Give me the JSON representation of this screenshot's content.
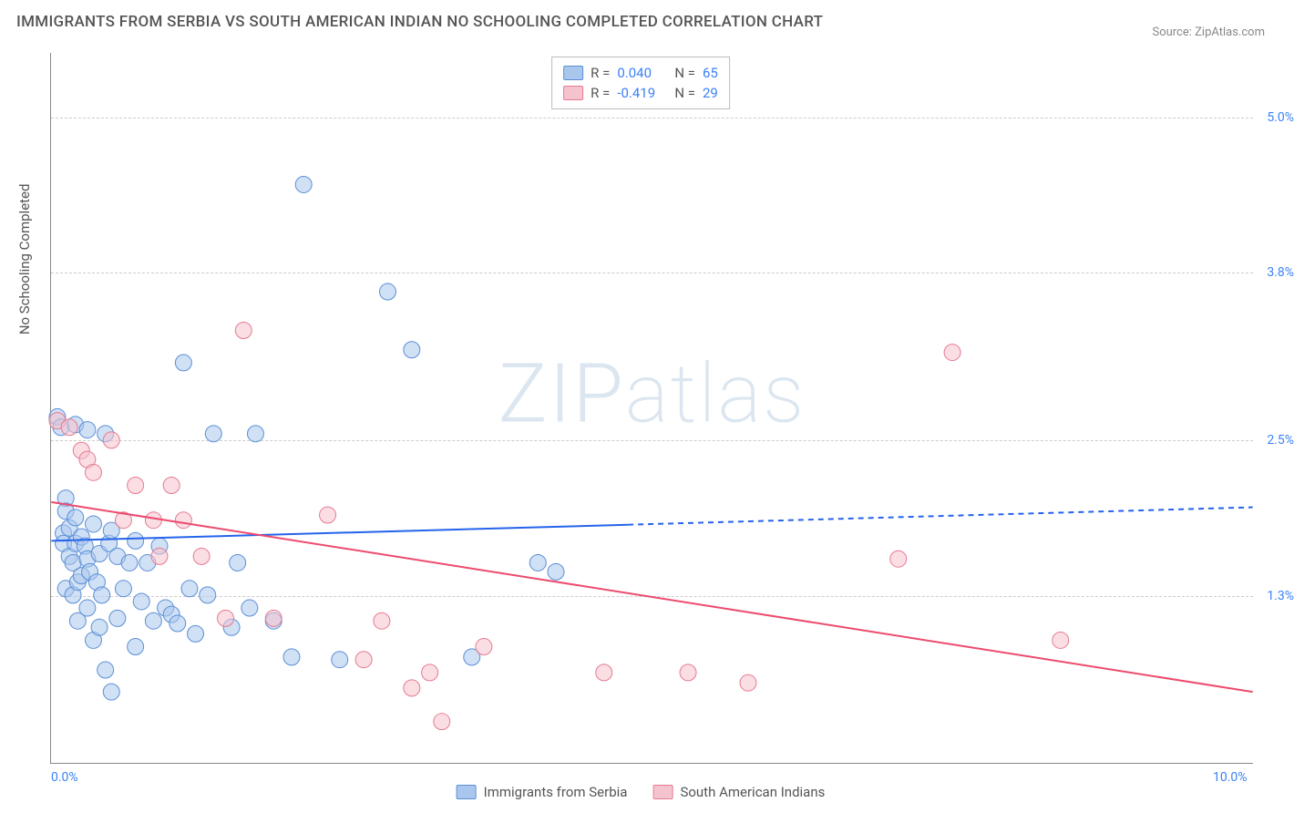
{
  "title": "IMMIGRANTS FROM SERBIA VS SOUTH AMERICAN INDIAN NO SCHOOLING COMPLETED CORRELATION CHART",
  "source": "Source: ZipAtlas.com",
  "watermark_a": "ZIP",
  "watermark_b": "atlas",
  "chart": {
    "type": "scatter-correlation",
    "ylabel": "No Schooling Completed",
    "background_color": "#ffffff",
    "grid_color": "#cccccc",
    "axis_color": "#888888",
    "tick_color": "#3b82f6",
    "xlim": [
      0.0,
      10.0
    ],
    "ylim": [
      0.0,
      5.5
    ],
    "yticks": [
      1.3,
      2.5,
      3.8,
      5.0
    ],
    "ytick_labels": [
      "1.3%",
      "2.5%",
      "3.8%",
      "5.0%"
    ],
    "xticks": [
      0.0,
      10.0
    ],
    "xtick_labels": [
      "0.0%",
      "10.0%"
    ],
    "tick_fontsize": 14,
    "label_fontsize": 15,
    "title_fontsize": 17,
    "marker_radius": 9,
    "marker_opacity": 0.55,
    "line_width": 2,
    "series": [
      {
        "name": "Immigrants from Serbia",
        "color_fill": "#a9c7ec",
        "color_stroke": "#5b8fd6",
        "line_color": "#2563eb",
        "R": "0.040",
        "N": "65",
        "trend": {
          "x1": 0.0,
          "y1": 1.72,
          "x2": 10.0,
          "y2": 1.98,
          "solid_until_x": 4.8
        },
        "points": [
          [
            0.05,
            2.68
          ],
          [
            0.08,
            2.6
          ],
          [
            0.1,
            1.78
          ],
          [
            0.1,
            1.7
          ],
          [
            0.12,
            2.05
          ],
          [
            0.12,
            1.95
          ],
          [
            0.12,
            1.35
          ],
          [
            0.15,
            1.82
          ],
          [
            0.15,
            1.6
          ],
          [
            0.18,
            1.55
          ],
          [
            0.18,
            1.3
          ],
          [
            0.2,
            2.62
          ],
          [
            0.2,
            1.9
          ],
          [
            0.2,
            1.7
          ],
          [
            0.22,
            1.4
          ],
          [
            0.22,
            1.1
          ],
          [
            0.25,
            1.75
          ],
          [
            0.25,
            1.45
          ],
          [
            0.28,
            1.68
          ],
          [
            0.3,
            2.58
          ],
          [
            0.3,
            1.58
          ],
          [
            0.3,
            1.2
          ],
          [
            0.32,
            1.48
          ],
          [
            0.35,
            1.85
          ],
          [
            0.35,
            0.95
          ],
          [
            0.38,
            1.4
          ],
          [
            0.4,
            1.62
          ],
          [
            0.4,
            1.05
          ],
          [
            0.42,
            1.3
          ],
          [
            0.45,
            2.55
          ],
          [
            0.45,
            0.72
          ],
          [
            0.48,
            1.7
          ],
          [
            0.5,
            1.8
          ],
          [
            0.5,
            0.55
          ],
          [
            0.55,
            1.6
          ],
          [
            0.55,
            1.12
          ],
          [
            0.6,
            1.35
          ],
          [
            0.65,
            1.55
          ],
          [
            0.7,
            0.9
          ],
          [
            0.7,
            1.72
          ],
          [
            0.75,
            1.25
          ],
          [
            0.8,
            1.55
          ],
          [
            0.85,
            1.1
          ],
          [
            0.9,
            1.68
          ],
          [
            0.95,
            1.2
          ],
          [
            1.0,
            1.15
          ],
          [
            1.05,
            1.08
          ],
          [
            1.1,
            3.1
          ],
          [
            1.15,
            1.35
          ],
          [
            1.2,
            1.0
          ],
          [
            1.3,
            1.3
          ],
          [
            1.35,
            2.55
          ],
          [
            1.5,
            1.05
          ],
          [
            1.55,
            1.55
          ],
          [
            1.65,
            1.2
          ],
          [
            1.7,
            2.55
          ],
          [
            1.85,
            1.1
          ],
          [
            2.0,
            0.82
          ],
          [
            2.1,
            4.48
          ],
          [
            2.4,
            0.8
          ],
          [
            2.8,
            3.65
          ],
          [
            3.0,
            3.2
          ],
          [
            3.5,
            0.82
          ],
          [
            4.05,
            1.55
          ],
          [
            4.2,
            1.48
          ]
        ]
      },
      {
        "name": "South American Indians",
        "color_fill": "#f5c3cd",
        "color_stroke": "#e67a92",
        "line_color": "#ec4b6e",
        "R": "-0.419",
        "N": "29",
        "trend": {
          "x1": 0.0,
          "y1": 2.02,
          "x2": 10.0,
          "y2": 0.55,
          "solid_until_x": 10.0
        },
        "points": [
          [
            0.05,
            2.65
          ],
          [
            0.15,
            2.6
          ],
          [
            0.25,
            2.42
          ],
          [
            0.3,
            2.35
          ],
          [
            0.35,
            2.25
          ],
          [
            0.5,
            2.5
          ],
          [
            0.6,
            1.88
          ],
          [
            0.7,
            2.15
          ],
          [
            0.85,
            1.88
          ],
          [
            0.9,
            1.6
          ],
          [
            1.0,
            2.15
          ],
          [
            1.1,
            1.88
          ],
          [
            1.25,
            1.6
          ],
          [
            1.45,
            1.12
          ],
          [
            1.6,
            3.35
          ],
          [
            1.85,
            1.12
          ],
          [
            2.3,
            1.92
          ],
          [
            2.6,
            0.8
          ],
          [
            2.75,
            1.1
          ],
          [
            3.0,
            0.58
          ],
          [
            3.15,
            0.7
          ],
          [
            3.25,
            0.32
          ],
          [
            3.6,
            0.9
          ],
          [
            4.6,
            0.7
          ],
          [
            5.3,
            0.7
          ],
          [
            5.8,
            0.62
          ],
          [
            7.05,
            1.58
          ],
          [
            7.5,
            3.18
          ],
          [
            8.4,
            0.95
          ]
        ]
      }
    ]
  },
  "legend_top": {
    "r_label": "R =",
    "n_label": "N =",
    "text_color": "#555555",
    "value_color": "#3b82f6"
  },
  "legend_bottom_labels": [
    "Immigrants from Serbia",
    "South American Indians"
  ]
}
